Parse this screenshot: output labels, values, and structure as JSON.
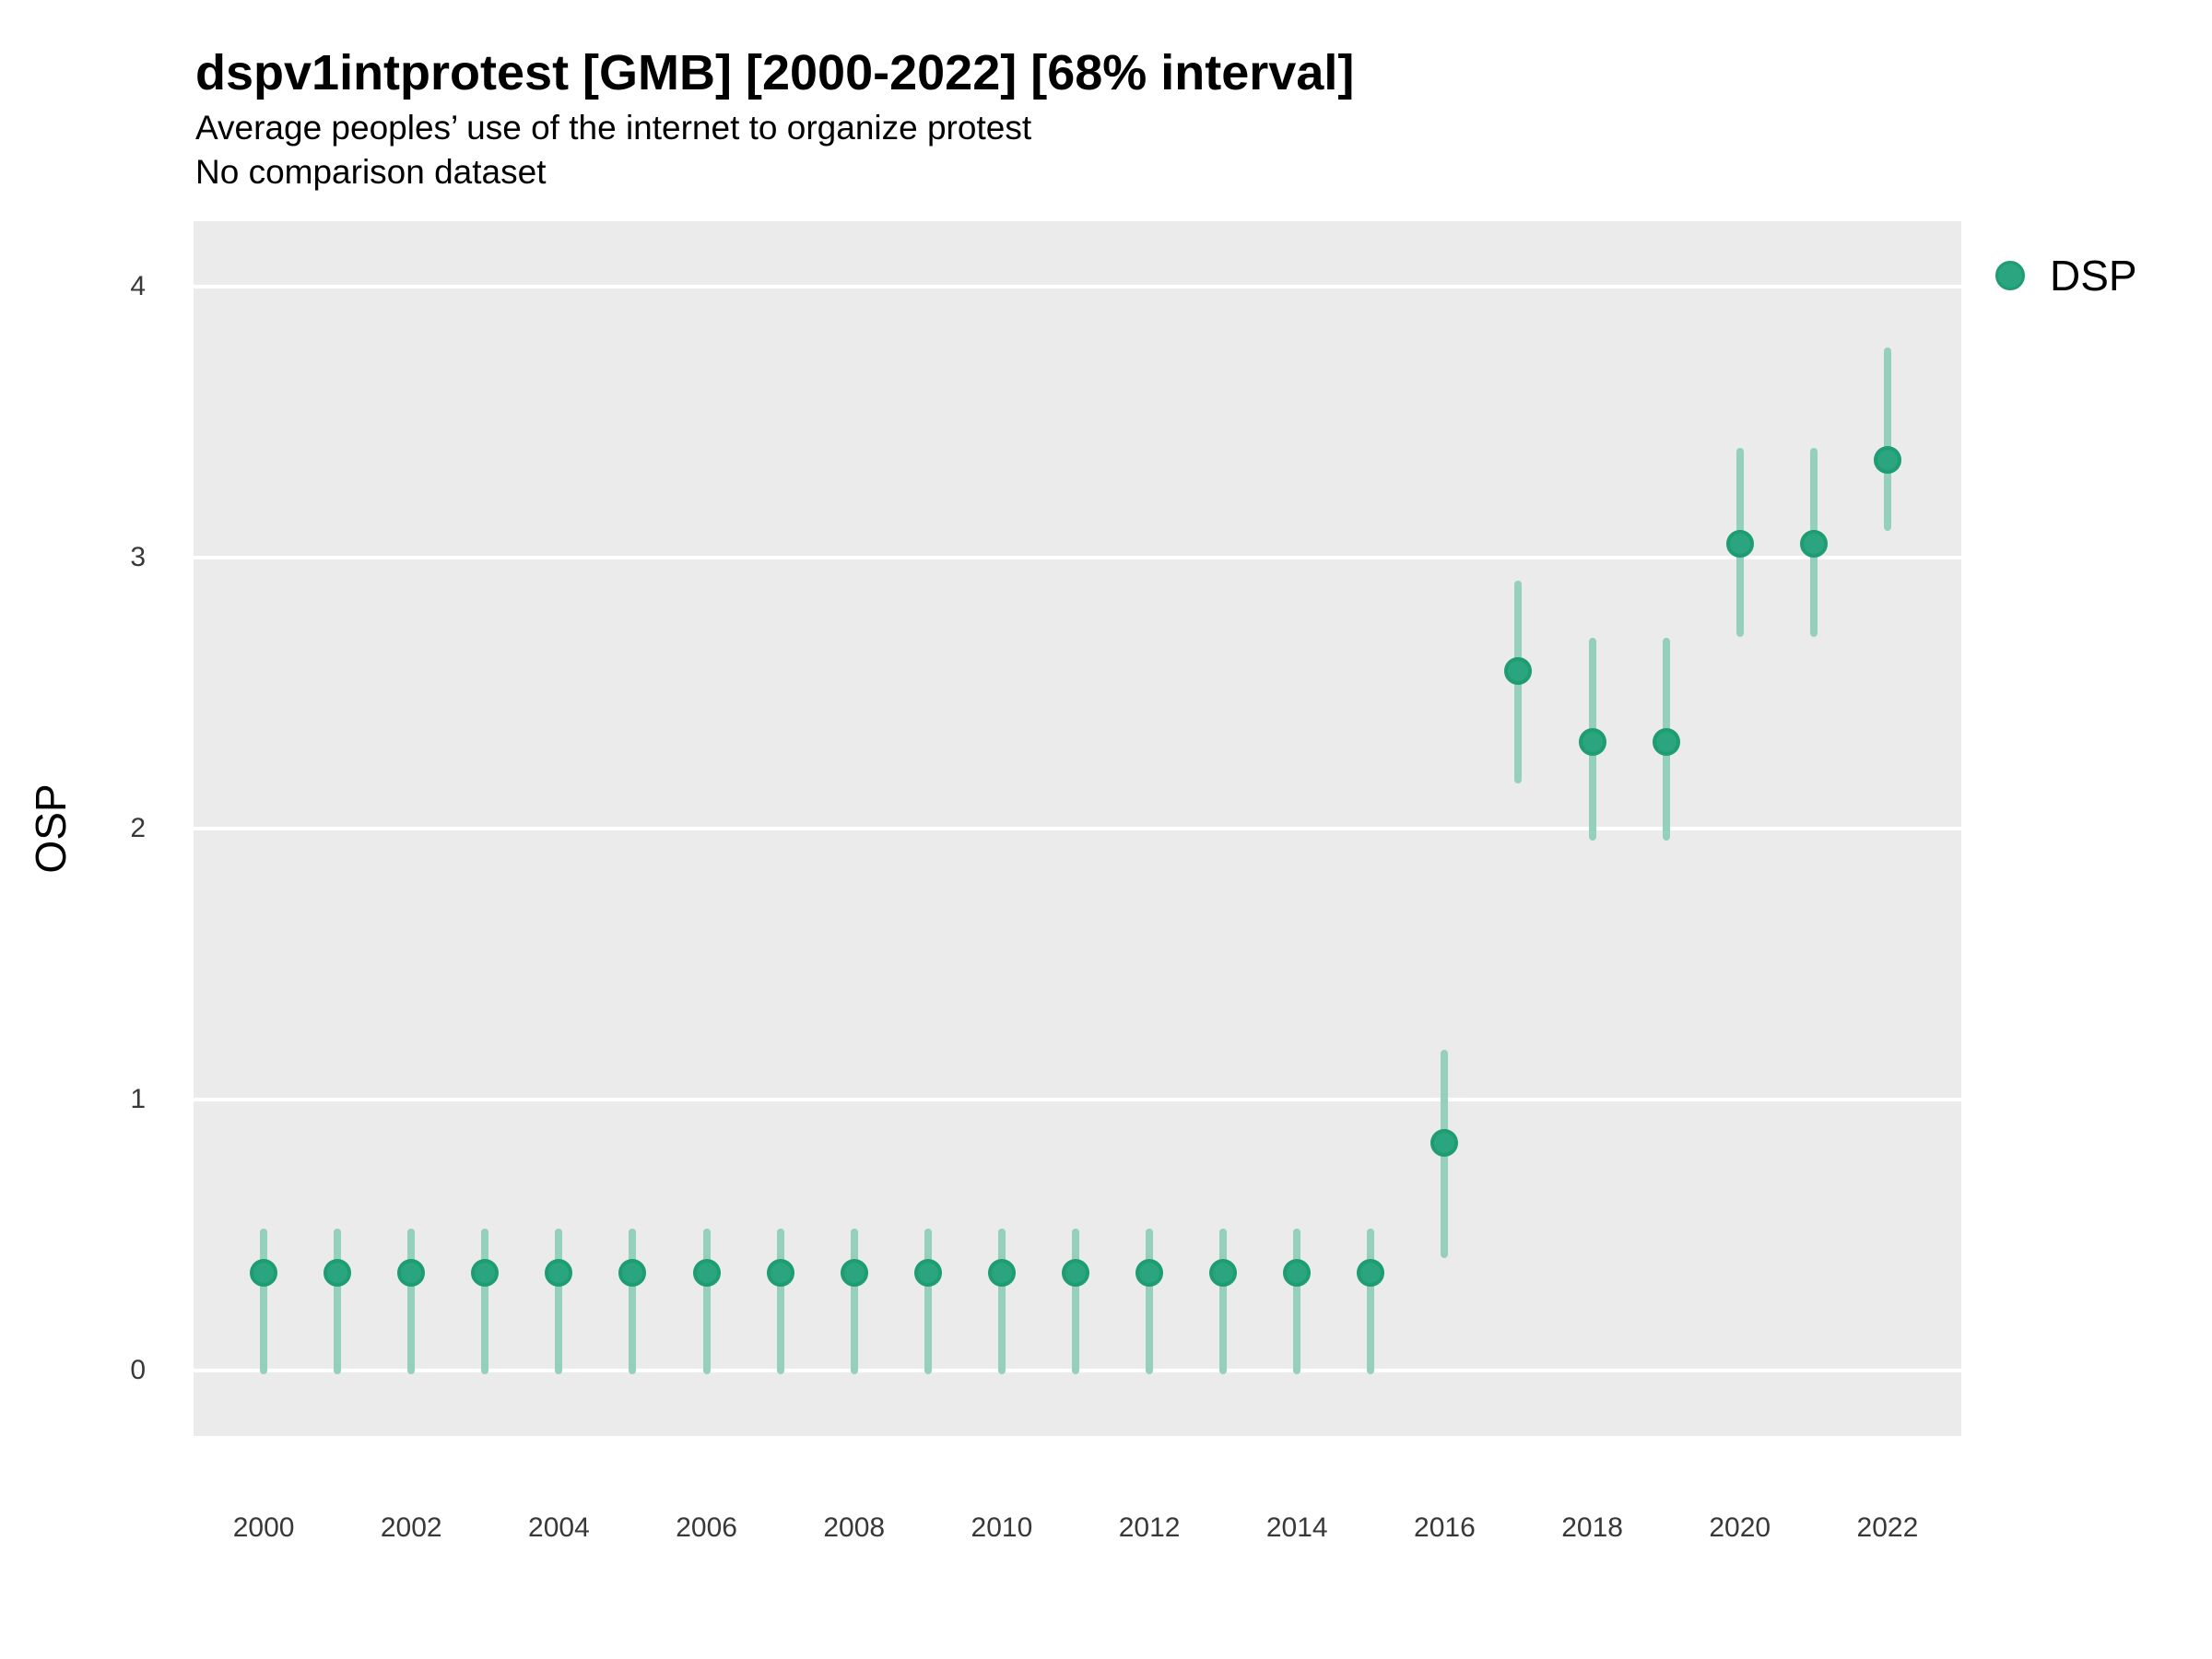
{
  "header": {
    "title": "dspv1intprotest [GMB] [2000-2022] [68% interval]",
    "subtitle": "Average peoples’ use of the internet to organize protest",
    "note": "No comparison dataset"
  },
  "chart_data": {
    "type": "scatter",
    "title": "dspv1intprotest [GMB] [2000-2022] [68% interval]",
    "subtitle": "Average peoples’ use of the internet to organize protest",
    "note": "No comparison dataset",
    "ylabel": "OSP",
    "xlabel": "",
    "interval": "68%",
    "grid": "horizontal-major-only",
    "legend": {
      "position": "right",
      "entries": [
        {
          "label": "DSP",
          "color": "#2aa57f"
        }
      ]
    },
    "x": [
      2000,
      2001,
      2002,
      2003,
      2004,
      2005,
      2006,
      2007,
      2008,
      2009,
      2010,
      2011,
      2012,
      2013,
      2014,
      2015,
      2016,
      2017,
      2018,
      2019,
      2020,
      2021,
      2022
    ],
    "series": [
      {
        "name": "DSP",
        "values": [
          0.36,
          0.36,
          0.36,
          0.36,
          0.36,
          0.36,
          0.36,
          0.36,
          0.36,
          0.36,
          0.36,
          0.36,
          0.36,
          0.36,
          0.36,
          0.36,
          0.84,
          2.58,
          2.32,
          2.32,
          3.05,
          3.05,
          3.36
        ],
        "lo": [
          0.0,
          0.0,
          0.0,
          0.0,
          0.0,
          0.0,
          0.0,
          0.0,
          0.0,
          0.0,
          0.0,
          0.0,
          0.0,
          0.0,
          0.0,
          0.0,
          0.43,
          2.18,
          1.97,
          1.97,
          2.72,
          2.72,
          3.11
        ],
        "hi": [
          0.51,
          0.51,
          0.51,
          0.51,
          0.51,
          0.51,
          0.51,
          0.51,
          0.51,
          0.51,
          0.51,
          0.51,
          0.51,
          0.51,
          0.51,
          0.51,
          1.17,
          2.9,
          2.69,
          2.69,
          3.39,
          3.39,
          3.76
        ]
      }
    ],
    "xticks": [
      2000,
      2002,
      2004,
      2006,
      2008,
      2010,
      2012,
      2014,
      2016,
      2018,
      2020,
      2022
    ],
    "yticks": [
      0,
      1,
      2,
      3,
      4
    ],
    "xlim": [
      1999.05,
      2023.0
    ],
    "ylim": [
      -0.24,
      4.24
    ],
    "colors": {
      "point_fill": "#2aa57f",
      "point_stroke": "#1e9c72",
      "interval_bar": "#94d0bc",
      "panel_bg": "#ebebeb",
      "gridline": "#ffffff"
    }
  }
}
